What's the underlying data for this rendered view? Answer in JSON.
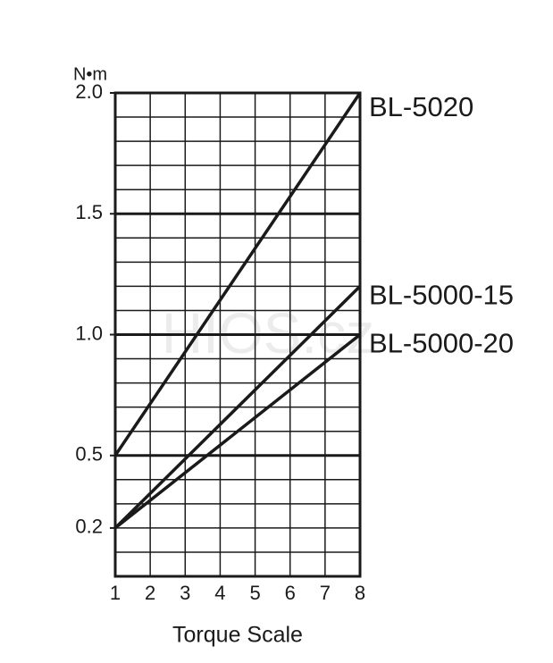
{
  "chart_data": {
    "type": "line",
    "y_unit": "N•m",
    "x_label": "Torque Scale",
    "watermark": "HIOS.cz",
    "x": [
      1,
      8
    ],
    "xlim": [
      1,
      8
    ],
    "xticks": [
      1,
      2,
      3,
      4,
      5,
      6,
      7,
      8
    ],
    "ylim": [
      0,
      2
    ],
    "yticks": [
      0.2,
      0.5,
      {
        "value": 1,
        "label": "1.0"
      },
      1.5,
      {
        "value": 2,
        "label": "2.0"
      }
    ],
    "minor_yticks": [
      0.1,
      0.2,
      0.3,
      0.4,
      0.6,
      0.7,
      0.8,
      0.9,
      1.1,
      1.2,
      1.3,
      1.4,
      1.6,
      1.7,
      1.8,
      1.9
    ],
    "bold_gridlines": [
      0.5,
      1,
      1.5
    ],
    "grid": true,
    "series": [
      {
        "name": "BL-5020",
        "color": "#1a1a1a",
        "values": [
          0.5,
          2.0
        ]
      },
      {
        "name": "BL-5000-15",
        "color": "#1a1a1a",
        "values": [
          0.2,
          1.2
        ]
      },
      {
        "name": "BL-5000-20",
        "color": "#1a1a1a",
        "values": [
          0.2,
          1.0
        ]
      }
    ]
  }
}
